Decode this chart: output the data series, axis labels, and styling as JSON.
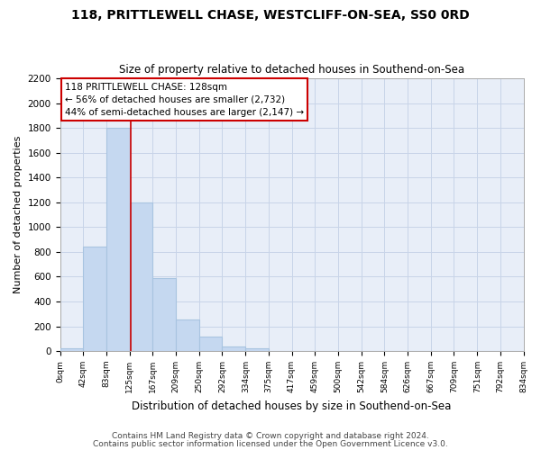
{
  "title": "118, PRITTLEWELL CHASE, WESTCLIFF-ON-SEA, SS0 0RD",
  "subtitle": "Size of property relative to detached houses in Southend-on-Sea",
  "xlabel": "Distribution of detached houses by size in Southend-on-Sea",
  "ylabel": "Number of detached properties",
  "bin_edges": [
    0,
    42,
    83,
    125,
    167,
    209,
    250,
    292,
    334,
    375,
    417,
    459,
    500,
    542,
    584,
    626,
    667,
    709,
    751,
    792,
    834
  ],
  "bar_heights": [
    25,
    840,
    1800,
    1200,
    590,
    255,
    120,
    40,
    25,
    0,
    0,
    0,
    0,
    0,
    0,
    0,
    0,
    0,
    0,
    0
  ],
  "tick_labels": [
    "0sqm",
    "42sqm",
    "83sqm",
    "125sqm",
    "167sqm",
    "209sqm",
    "250sqm",
    "292sqm",
    "334sqm",
    "375sqm",
    "417sqm",
    "459sqm",
    "500sqm",
    "542sqm",
    "584sqm",
    "626sqm",
    "667sqm",
    "709sqm",
    "751sqm",
    "792sqm",
    "834sqm"
  ],
  "bar_color": "#c5d8f0",
  "bar_edge_color": "#a8c4e0",
  "property_line_x": 128,
  "property_line_color": "#cc0000",
  "annotation_title": "118 PRITTLEWELL CHASE: 128sqm",
  "annotation_line1": "← 56% of detached houses are smaller (2,732)",
  "annotation_line2": "44% of semi-detached houses are larger (2,147) →",
  "annotation_box_facecolor": "#ffffff",
  "annotation_box_edgecolor": "#cc0000",
  "ylim": [
    0,
    2200
  ],
  "yticks": [
    0,
    200,
    400,
    600,
    800,
    1000,
    1200,
    1400,
    1600,
    1800,
    2000,
    2200
  ],
  "grid_color": "#c8d4e8",
  "bg_color": "#ffffff",
  "plot_bg_color": "#e8eef8",
  "footnote1": "Contains HM Land Registry data © Crown copyright and database right 2024.",
  "footnote2": "Contains public sector information licensed under the Open Government Licence v3.0."
}
